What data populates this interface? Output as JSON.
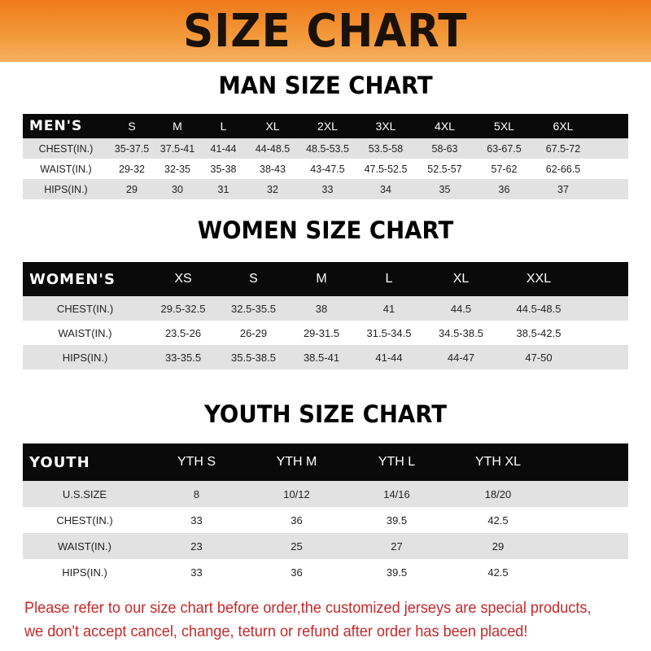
{
  "banner_title": "SIZE CHART",
  "men": {
    "title": "MAN SIZE CHART",
    "header": [
      "MEN'S",
      "S",
      "M",
      "L",
      "XL",
      "2XL",
      "3XL",
      "4XL",
      "5XL",
      "6XL"
    ],
    "rows": [
      [
        "CHEST(IN.)",
        "35-37.5",
        "37.5-41",
        "41-44",
        "44-48.5",
        "48.5-53.5",
        "53.5-58",
        "58-63",
        "63-67.5",
        "67.5-72"
      ],
      [
        "WAIST(IN.)",
        "29-32",
        "32-35",
        "35-38",
        "38-43",
        "43-47.5",
        "47.5-52.5",
        "52.5-57",
        "57-62",
        "62-66.5"
      ],
      [
        "HIPS(IN.)",
        "29",
        "30",
        "31",
        "32",
        "33",
        "34",
        "35",
        "36",
        "37"
      ]
    ]
  },
  "women": {
    "title": "WOMEN SIZE CHART",
    "header": [
      "WOMEN'S",
      "XS",
      "S",
      "M",
      "L",
      "XL",
      "XXL"
    ],
    "rows": [
      [
        "CHEST(IN.)",
        "29.5-32.5",
        "32.5-35.5",
        "38",
        "41",
        "44.5",
        "44.5-48.5"
      ],
      [
        "WAIST(IN.)",
        "23.5-26",
        "26-29",
        "29-31.5",
        "31.5-34.5",
        "34.5-38.5",
        "38.5-42.5"
      ],
      [
        "HIPS(IN.)",
        "33-35.5",
        "35.5-38.5",
        "38.5-41",
        "41-44",
        "44-47",
        "47-50"
      ]
    ]
  },
  "youth": {
    "title": "YOUTH SIZE CHART",
    "header": [
      "YOUTH",
      "YTH S",
      "YTH M",
      "YTH L",
      "YTH XL"
    ],
    "rows": [
      [
        "U.S.SIZE",
        "8",
        "10/12",
        "14/16",
        "18/20"
      ],
      [
        "CHEST(IN.)",
        "33",
        "36",
        "39.5",
        "42.5"
      ],
      [
        "WAIST(IN.)",
        "23",
        "25",
        "27",
        "29"
      ],
      [
        "HIPS(IN.)",
        "33",
        "36",
        "39.5",
        "42.5"
      ]
    ]
  },
  "footer": {
    "line1": "Please refer to our size chart before order,the customized jerseys are special products,",
    "line2": "we don't accept cancel, change, teturn or refund after order has been placed!"
  },
  "colors": {
    "banner": "#f07a1c",
    "header_row": "#0a0a0a",
    "footer_text": "#c8282a"
  }
}
